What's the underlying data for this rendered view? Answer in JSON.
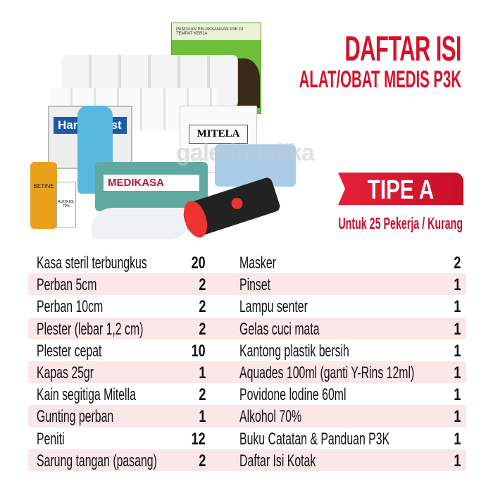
{
  "header": {
    "title": "DAFTAR ISI",
    "subtitle": "ALAT/OBAT MEDIS P3K"
  },
  "badge": {
    "label": "TIPE A",
    "caption": "Untuk 25 Pekerja / Kurang"
  },
  "colors": {
    "accent": "#d7122a",
    "row_highlight": "#fbe6e8"
  },
  "photo": {
    "watermark": "galerimedika",
    "book_title": "PANDUAN PELAKSANAAN P3K DI TEMPAT KERJA",
    "plaster_label": "Hansaplast",
    "mitela_label": "MITELA",
    "bag_label": "MEDIKASA",
    "alcohol_label": "ALKOHOL 70%",
    "betadine_label": "BETINE"
  },
  "rows": [
    {
      "left": {
        "name": "Kasa steril terbungkus",
        "qty": "20"
      },
      "right": {
        "name": "Masker",
        "qty": "2"
      }
    },
    {
      "left": {
        "name": "Perban 5cm",
        "qty": "2"
      },
      "right": {
        "name": "Pinset",
        "qty": "1"
      }
    },
    {
      "left": {
        "name": "Perban 10cm",
        "qty": "2"
      },
      "right": {
        "name": "Lampu senter",
        "qty": "1"
      }
    },
    {
      "left": {
        "name": "Plester (lebar 1,2 cm)",
        "qty": "2"
      },
      "right": {
        "name": "Gelas cuci mata",
        "qty": "1"
      }
    },
    {
      "left": {
        "name": "Plester cepat",
        "qty": "10"
      },
      "right": {
        "name": "Kantong plastik bersih",
        "qty": "1"
      }
    },
    {
      "left": {
        "name": "Kapas 25gr",
        "qty": "1"
      },
      "right": {
        "name": "Aquades 100ml (ganti Y-Rins 12ml)",
        "qty": "1"
      }
    },
    {
      "left": {
        "name": "Kain segitiga Mitella",
        "qty": "2"
      },
      "right": {
        "name": "Povidone lodine 60ml",
        "qty": "1"
      }
    },
    {
      "left": {
        "name": "Gunting perban",
        "qty": "1"
      },
      "right": {
        "name": "Alkohol 70%",
        "qty": "1"
      }
    },
    {
      "left": {
        "name": "Peniti",
        "qty": "12"
      },
      "right": {
        "name": "Buku Catatan & Panduan P3K",
        "qty": "1"
      }
    },
    {
      "left": {
        "name": "Sarung tangan (pasang)",
        "qty": "2"
      },
      "right": {
        "name": "Daftar Isi Kotak",
        "qty": "1"
      }
    }
  ]
}
